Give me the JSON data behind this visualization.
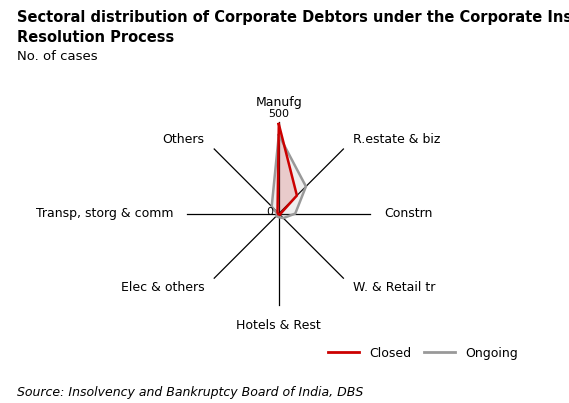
{
  "title_line1": "Sectoral distribution of Corporate Debtors under the Corporate Insolvency",
  "title_line2": "Resolution Process",
  "subtitle": "No. of cases",
  "source": "Source: Insolvency and Bankruptcy Board of India, DBS",
  "categories": [
    "Manufg",
    "R.estate & biz",
    "Constrn",
    "W. & Retail tr",
    "Hotels & Rest",
    "Elec & others",
    "Transp, storg & comm",
    "Others"
  ],
  "max_value": 500,
  "closed": [
    490,
    140,
    10,
    10,
    5,
    5,
    5,
    10
  ],
  "ongoing": [
    430,
    210,
    90,
    35,
    20,
    20,
    10,
    55
  ],
  "closed_color": "#cc0000",
  "ongoing_color": "#999999",
  "title_fontsize": 10.5,
  "subtitle_fontsize": 9.5,
  "source_fontsize": 9,
  "label_fontsize": 9,
  "background_color": "#ffffff"
}
